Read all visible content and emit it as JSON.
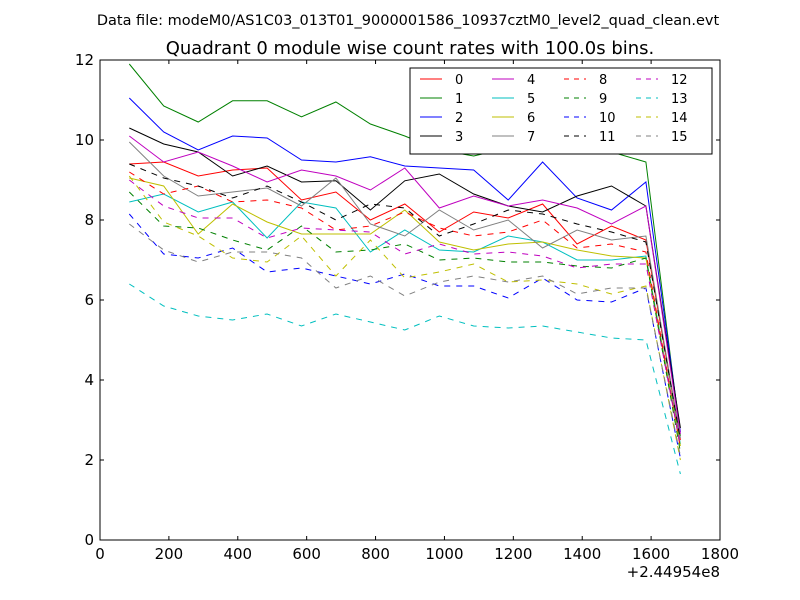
{
  "supertitle": "Data file: modeM0/AS1C03_013T01_9000001586_10937cztM0_level2_quad_clean.evt",
  "chart_data": {
    "type": "line",
    "title": "Quadrant 0 module wise count rates with 100.0s bins.",
    "xlabel": "",
    "ylabel": "",
    "x_offset_label": "+2.44954e8",
    "xlim": [
      0,
      1800
    ],
    "ylim": [
      0,
      12
    ],
    "x_ticks": [
      0,
      200,
      400,
      600,
      800,
      1000,
      1200,
      1400,
      1600,
      1800
    ],
    "x_tick_labels": [
      "0",
      "200",
      "400",
      "600",
      "800",
      "1000",
      "1200",
      "1400",
      "1600",
      "1800"
    ],
    "y_ticks": [
      0,
      2,
      4,
      6,
      8,
      10,
      12
    ],
    "y_tick_labels": [
      "0",
      "2",
      "4",
      "6",
      "8",
      "10",
      "12"
    ],
    "x": [
      85,
      185,
      285,
      385,
      485,
      585,
      685,
      785,
      885,
      985,
      1085,
      1185,
      1285,
      1385,
      1485,
      1585,
      1685
    ],
    "legend_position": "top-right",
    "series": [
      {
        "name": "0",
        "color": "#ff0000",
        "dash": "solid",
        "values": [
          9.4,
          9.45,
          9.1,
          9.25,
          9.3,
          8.5,
          8.7,
          8.0,
          8.4,
          7.7,
          8.2,
          8.05,
          8.4,
          7.4,
          7.85,
          7.5,
          2.5
        ]
      },
      {
        "name": "1",
        "color": "#008000",
        "dash": "solid",
        "values": [
          11.9,
          10.85,
          10.45,
          10.98,
          10.98,
          10.58,
          10.95,
          10.4,
          10.1,
          9.75,
          9.6,
          9.8,
          9.7,
          9.85,
          9.7,
          9.45,
          2.6
        ]
      },
      {
        "name": "2",
        "color": "#0000ff",
        "dash": "solid",
        "values": [
          11.05,
          10.2,
          9.75,
          10.1,
          10.05,
          9.5,
          9.45,
          9.58,
          9.35,
          9.3,
          9.25,
          8.5,
          9.45,
          8.55,
          8.25,
          8.95,
          2.7
        ]
      },
      {
        "name": "3",
        "color": "#000000",
        "dash": "solid",
        "values": [
          10.3,
          9.9,
          9.7,
          9.1,
          9.35,
          8.95,
          8.98,
          8.25,
          8.98,
          9.15,
          8.65,
          8.35,
          8.2,
          8.6,
          8.85,
          8.35,
          2.8
        ]
      },
      {
        "name": "4",
        "color": "#bf00bf",
        "dash": "solid",
        "values": [
          10.1,
          9.45,
          9.7,
          9.35,
          8.95,
          9.25,
          9.1,
          8.75,
          9.3,
          8.3,
          8.6,
          8.35,
          8.5,
          8.3,
          7.9,
          8.35,
          2.65
        ]
      },
      {
        "name": "5",
        "color": "#00bfbf",
        "dash": "solid",
        "values": [
          8.45,
          8.65,
          8.2,
          8.45,
          7.55,
          8.45,
          8.3,
          7.2,
          7.75,
          7.25,
          7.2,
          7.6,
          7.45,
          7.0,
          7.0,
          7.1,
          2.4
        ]
      },
      {
        "name": "6",
        "color": "#bfbf00",
        "dash": "solid",
        "values": [
          9.05,
          8.85,
          7.65,
          8.4,
          7.95,
          7.65,
          7.65,
          7.65,
          8.25,
          7.45,
          7.25,
          7.4,
          7.45,
          7.25,
          7.1,
          7.05,
          2.35
        ]
      },
      {
        "name": "7",
        "color": "#808080",
        "dash": "solid",
        "values": [
          9.95,
          9.1,
          8.6,
          8.7,
          8.8,
          8.35,
          9.05,
          7.9,
          7.6,
          8.25,
          7.75,
          8.0,
          7.3,
          7.75,
          7.5,
          7.6,
          2.55
        ]
      },
      {
        "name": "8",
        "color": "#ff0000",
        "dash": "dashed",
        "values": [
          9.2,
          8.65,
          8.85,
          8.45,
          8.5,
          8.3,
          7.75,
          7.85,
          8.2,
          7.8,
          7.6,
          7.7,
          8.0,
          7.3,
          7.4,
          7.2,
          2.3
        ]
      },
      {
        "name": "9",
        "color": "#008000",
        "dash": "dashed",
        "values": [
          8.7,
          7.85,
          7.8,
          7.5,
          7.25,
          7.85,
          7.2,
          7.25,
          7.4,
          7.0,
          7.05,
          6.95,
          6.95,
          6.85,
          6.8,
          7.05,
          2.2
        ]
      },
      {
        "name": "10",
        "color": "#0000ff",
        "dash": "dashed",
        "values": [
          8.15,
          7.15,
          7.05,
          7.3,
          6.7,
          6.8,
          6.6,
          6.4,
          6.65,
          6.35,
          6.35,
          6.05,
          6.55,
          6.0,
          5.95,
          6.3,
          2.05
        ]
      },
      {
        "name": "11",
        "color": "#000000",
        "dash": "dashed",
        "values": [
          9.4,
          9.05,
          8.85,
          8.55,
          8.85,
          8.45,
          8.0,
          8.4,
          8.3,
          7.6,
          7.9,
          8.25,
          8.15,
          7.9,
          7.7,
          7.45,
          2.5
        ]
      },
      {
        "name": "12",
        "color": "#bf00bf",
        "dash": "dashed",
        "values": [
          9.0,
          8.35,
          8.05,
          8.05,
          7.55,
          7.8,
          7.75,
          7.7,
          7.15,
          7.4,
          7.15,
          7.2,
          7.1,
          6.8,
          6.9,
          6.9,
          2.35
        ]
      },
      {
        "name": "13",
        "color": "#00bfbf",
        "dash": "dashed",
        "values": [
          6.4,
          5.85,
          5.6,
          5.5,
          5.65,
          5.35,
          5.65,
          5.45,
          5.25,
          5.6,
          5.35,
          5.3,
          5.35,
          5.2,
          5.05,
          5.0,
          1.65
        ]
      },
      {
        "name": "14",
        "color": "#bfbf00",
        "dash": "dashed",
        "values": [
          9.1,
          7.95,
          7.6,
          7.05,
          6.95,
          7.6,
          6.6,
          7.5,
          6.55,
          6.7,
          6.9,
          6.45,
          6.5,
          6.4,
          6.15,
          6.35,
          2.0
        ]
      },
      {
        "name": "15",
        "color": "#808080",
        "dash": "dashed",
        "values": [
          7.9,
          7.25,
          6.95,
          7.2,
          7.2,
          7.05,
          6.3,
          6.6,
          6.1,
          6.45,
          6.6,
          6.45,
          6.6,
          6.15,
          6.3,
          6.3,
          2.1
        ]
      }
    ]
  }
}
